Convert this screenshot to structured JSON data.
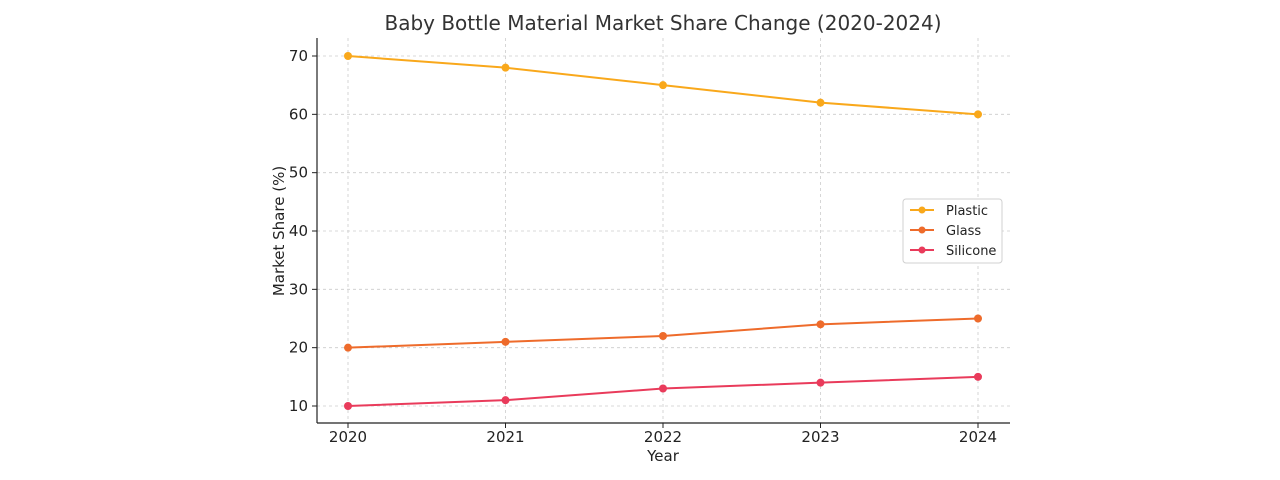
{
  "chart_data": {
    "type": "line",
    "title": "Baby Bottle Material Market Share Change (2020-2024)",
    "xlabel": "Year",
    "ylabel": "Market Share (%)",
    "x": [
      "2020",
      "2021",
      "2022",
      "2023",
      "2024"
    ],
    "ylim": [
      7,
      73
    ],
    "yticks": [
      10,
      20,
      30,
      40,
      50,
      60,
      70
    ],
    "grid": true,
    "legend_position": "center-right",
    "series": [
      {
        "name": "Plastic",
        "color": "#F9A81B",
        "values": [
          70,
          68,
          65,
          62,
          60
        ]
      },
      {
        "name": "Glass",
        "color": "#EE6B2B",
        "values": [
          20,
          21,
          22,
          24,
          25
        ]
      },
      {
        "name": "Silicone",
        "color": "#E93B5B",
        "values": [
          10,
          11,
          13,
          14,
          15
        ]
      }
    ]
  }
}
